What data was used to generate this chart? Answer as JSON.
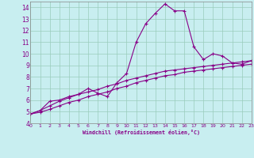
{
  "xlabel": "Windchill (Refroidissement éolien,°C)",
  "xlim": [
    0,
    23
  ],
  "ylim": [
    4,
    14.5
  ],
  "xticks": [
    0,
    1,
    2,
    3,
    4,
    5,
    6,
    7,
    8,
    9,
    10,
    11,
    12,
    13,
    14,
    15,
    16,
    17,
    18,
    19,
    20,
    21,
    22,
    23
  ],
  "yticks": [
    4,
    5,
    6,
    7,
    8,
    9,
    10,
    11,
    12,
    13,
    14
  ],
  "background_color": "#c8eef0",
  "line_color": "#880088",
  "grid_color": "#99ccbb",
  "curve1_x": [
    0,
    1,
    2,
    3,
    4,
    5,
    6,
    7,
    8,
    9,
    10,
    11,
    12,
    13,
    14,
    15,
    16,
    17,
    18,
    19,
    20,
    21,
    22,
    23
  ],
  "curve1_y": [
    4.8,
    5.1,
    5.9,
    6.0,
    6.3,
    6.5,
    7.0,
    6.6,
    6.3,
    7.5,
    8.3,
    11.0,
    12.6,
    13.5,
    14.3,
    13.7,
    13.7,
    10.6,
    9.5,
    10.0,
    9.8,
    9.2,
    9.1,
    9.4
  ],
  "curve2_x": [
    0,
    1,
    2,
    3,
    4,
    5,
    6,
    7,
    8,
    9,
    10,
    11,
    12,
    13,
    14,
    15,
    16,
    17,
    18,
    19,
    20,
    21,
    22,
    23
  ],
  "curve2_y": [
    4.8,
    5.1,
    5.5,
    5.9,
    6.2,
    6.5,
    6.7,
    6.9,
    7.2,
    7.4,
    7.7,
    7.9,
    8.1,
    8.3,
    8.5,
    8.6,
    8.7,
    8.8,
    8.9,
    9.0,
    9.1,
    9.2,
    9.3,
    9.4
  ],
  "curve3_x": [
    0,
    1,
    2,
    3,
    4,
    5,
    6,
    7,
    8,
    9,
    10,
    11,
    12,
    13,
    14,
    15,
    16,
    17,
    18,
    19,
    20,
    21,
    22,
    23
  ],
  "curve3_y": [
    4.8,
    4.95,
    5.2,
    5.5,
    5.8,
    6.0,
    6.3,
    6.5,
    6.7,
    7.0,
    7.2,
    7.5,
    7.7,
    7.9,
    8.1,
    8.2,
    8.4,
    8.5,
    8.6,
    8.7,
    8.8,
    8.9,
    9.0,
    9.1
  ]
}
